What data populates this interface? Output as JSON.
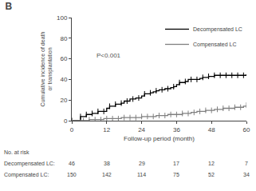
{
  "chart_data": {
    "type": "step",
    "title": "B",
    "xlabel": "Follow-up period (month)",
    "ylabel": "Cumulative incidence of death\nor transplantation",
    "xlim": [
      0,
      60
    ],
    "ylim": [
      0,
      100
    ],
    "xticks": [
      0,
      12,
      24,
      36,
      48,
      60
    ],
    "yticks": [
      0,
      20,
      40,
      60,
      80,
      100
    ],
    "grid": false,
    "legend": "upper right",
    "series": [
      {
        "name": "Decompensated LC",
        "color": "#000000",
        "marker": "tick",
        "x": [
          0,
          2,
          3,
          4,
          5,
          6,
          7,
          8,
          9,
          10,
          11,
          12,
          13,
          14,
          15,
          16,
          17,
          18,
          19,
          20,
          21,
          22,
          23,
          24,
          25,
          26,
          27,
          28,
          29,
          30,
          31,
          32,
          33,
          34,
          35,
          36,
          37,
          38,
          39,
          40,
          41,
          42,
          43,
          44,
          45,
          46,
          47,
          48,
          49,
          50,
          51,
          52,
          53,
          54,
          55,
          56,
          57,
          58,
          59,
          60
        ],
        "values": [
          0,
          0,
          4,
          4,
          6,
          6,
          7,
          7,
          9,
          9,
          9,
          12,
          14,
          14,
          16,
          16,
          17,
          19,
          19,
          21,
          21,
          22,
          22,
          24,
          26,
          26,
          27,
          28,
          29,
          30,
          30,
          31,
          31,
          32,
          33,
          35,
          37,
          37,
          38,
          40,
          40,
          40,
          40,
          41,
          42,
          42,
          43,
          43,
          44,
          44,
          44,
          44,
          44,
          44,
          44,
          44,
          44,
          44,
          44,
          45
        ]
      },
      {
        "name": "Compensated LC",
        "color": "#808080",
        "marker": "tick",
        "x": [
          0,
          3,
          4,
          5,
          6,
          7,
          8,
          9,
          10,
          11,
          12,
          13,
          14,
          15,
          16,
          17,
          18,
          19,
          20,
          21,
          22,
          23,
          24,
          25,
          26,
          27,
          28,
          29,
          30,
          31,
          32,
          33,
          34,
          35,
          36,
          37,
          38,
          39,
          40,
          41,
          42,
          43,
          44,
          45,
          46,
          47,
          48,
          49,
          50,
          51,
          52,
          53,
          54,
          55,
          56,
          57,
          58,
          59,
          60
        ],
        "values": [
          0,
          0,
          0,
          0,
          1,
          1,
          1,
          1,
          1,
          2,
          2,
          2,
          2,
          2,
          2,
          3,
          3,
          3,
          3,
          3,
          3,
          3,
          4,
          4,
          4,
          4,
          4,
          5,
          5,
          5,
          5,
          6,
          6,
          6,
          6,
          6,
          7,
          7,
          7,
          8,
          8,
          9,
          9,
          9,
          10,
          10,
          10,
          11,
          11,
          11,
          12,
          12,
          12,
          12,
          13,
          13,
          13,
          14,
          15
        ]
      }
    ],
    "annotations": [
      {
        "text": "P<0.001",
        "x": 8,
        "y": 68
      }
    ],
    "at_risk": {
      "title": "No. at risk",
      "x": [
        0,
        12,
        24,
        36,
        48,
        60
      ],
      "rows": [
        {
          "name": "Decompensated LC:",
          "values": [
            46,
            38,
            29,
            17,
            12,
            7
          ]
        },
        {
          "name": "Compensated LC:  ",
          "values": [
            150,
            142,
            114,
            75,
            52,
            34
          ]
        }
      ]
    }
  }
}
